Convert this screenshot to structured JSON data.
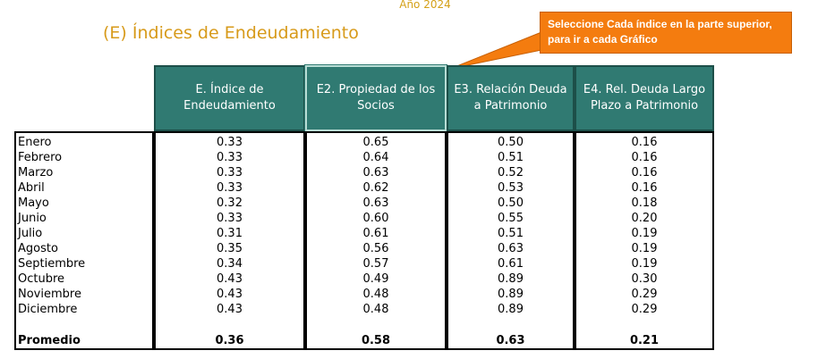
{
  "year_label": "Año 2024",
  "title": "(E) Índices de Endeudamiento",
  "callout": {
    "line1": "Seleccione Cada índice en la parte superior,",
    "line2": "para ir a cada Gráfico",
    "color": "#f47c0f"
  },
  "colors": {
    "header": "#307a72",
    "title": "#d79a1a"
  },
  "columns": [
    {
      "label": "E. Índice de Endeudamiento"
    },
    {
      "label": "E2. Propiedad de los Socios"
    },
    {
      "label": "E3. Relación Deuda a Patrimonio"
    },
    {
      "label": "E4. Rel. Deuda Largo Plazo a Patrimonio"
    }
  ],
  "rows": [
    {
      "month": "Enero",
      "values": [
        "0.33",
        "0.65",
        "0.50",
        "0.16"
      ]
    },
    {
      "month": "Febrero",
      "values": [
        "0.33",
        "0.64",
        "0.51",
        "0.16"
      ]
    },
    {
      "month": "Marzo",
      "values": [
        "0.33",
        "0.63",
        "0.52",
        "0.16"
      ]
    },
    {
      "month": "Abril",
      "values": [
        "0.33",
        "0.62",
        "0.53",
        "0.16"
      ]
    },
    {
      "month": "Mayo",
      "values": [
        "0.32",
        "0.63",
        "0.50",
        "0.18"
      ]
    },
    {
      "month": "Junio",
      "values": [
        "0.33",
        "0.60",
        "0.55",
        "0.20"
      ]
    },
    {
      "month": "Julio",
      "values": [
        "0.31",
        "0.61",
        "0.51",
        "0.19"
      ]
    },
    {
      "month": "Agosto",
      "values": [
        "0.35",
        "0.56",
        "0.63",
        "0.19"
      ]
    },
    {
      "month": "Septiembre",
      "values": [
        "0.34",
        "0.57",
        "0.61",
        "0.19"
      ]
    },
    {
      "month": "Octubre",
      "values": [
        "0.43",
        "0.49",
        "0.89",
        "0.30"
      ]
    },
    {
      "month": "Noviembre",
      "values": [
        "0.43",
        "0.48",
        "0.89",
        "0.29"
      ]
    },
    {
      "month": "Diciembre",
      "values": [
        "0.43",
        "0.48",
        "0.89",
        "0.29"
      ]
    }
  ],
  "average": {
    "label": "Promedio",
    "values": [
      "0.36",
      "0.58",
      "0.63",
      "0.21"
    ]
  }
}
